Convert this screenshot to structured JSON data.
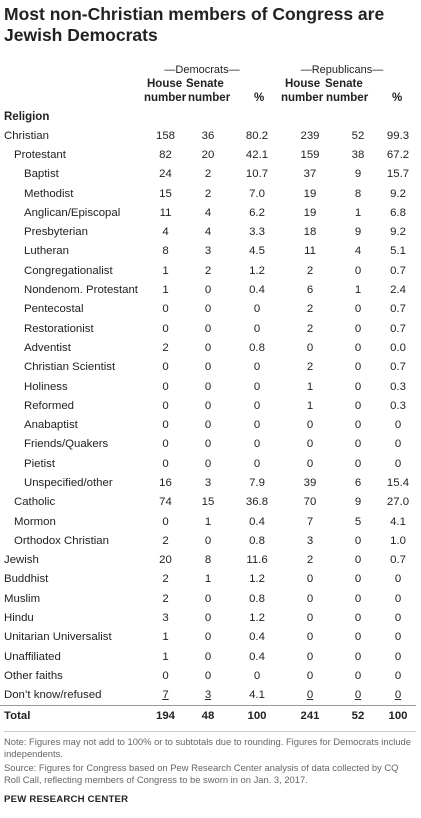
{
  "title": "Most non-Christian members of Congress are Jewish Democrats",
  "groups": {
    "democrats": "—Democrats—",
    "republicans": "—Republicans—"
  },
  "columns": {
    "house_top": "House",
    "senate_top": "Senate",
    "house_bottom": "number",
    "senate_bottom": "number",
    "pct": "%"
  },
  "religion_header": "Religion",
  "rows": [
    {
      "label": "Christian",
      "indent": 0,
      "v": [
        "158",
        "36",
        "80.2",
        "239",
        "52",
        "99.3"
      ]
    },
    {
      "label": "Protestant",
      "indent": 1,
      "v": [
        "82",
        "20",
        "42.1",
        "159",
        "38",
        "67.2"
      ]
    },
    {
      "label": "Baptist",
      "indent": 2,
      "v": [
        "24",
        "2",
        "10.7",
        "37",
        "9",
        "15.7"
      ]
    },
    {
      "label": "Methodist",
      "indent": 2,
      "v": [
        "15",
        "2",
        "7.0",
        "19",
        "8",
        "9.2"
      ]
    },
    {
      "label": "Anglican/Episcopal",
      "indent": 2,
      "v": [
        "11",
        "4",
        "6.2",
        "19",
        "1",
        "6.8"
      ]
    },
    {
      "label": "Presbyterian",
      "indent": 2,
      "v": [
        "4",
        "4",
        "3.3",
        "18",
        "9",
        "9.2"
      ]
    },
    {
      "label": "Lutheran",
      "indent": 2,
      "v": [
        "8",
        "3",
        "4.5",
        "11",
        "4",
        "5.1"
      ]
    },
    {
      "label": "Congregationalist",
      "indent": 2,
      "v": [
        "1",
        "2",
        "1.2",
        "2",
        "0",
        "0.7"
      ]
    },
    {
      "label": "Nondenom. Protestant",
      "indent": 2,
      "v": [
        "1",
        "0",
        "0.4",
        "6",
        "1",
        "2.4"
      ]
    },
    {
      "label": "Pentecostal",
      "indent": 2,
      "v": [
        "0",
        "0",
        "0",
        "2",
        "0",
        "0.7"
      ]
    },
    {
      "label": "Restorationist",
      "indent": 2,
      "v": [
        "0",
        "0",
        "0",
        "2",
        "0",
        "0.7"
      ]
    },
    {
      "label": "Adventist",
      "indent": 2,
      "v": [
        "2",
        "0",
        "0.8",
        "0",
        "0",
        "0.0"
      ]
    },
    {
      "label": "Christian Scientist",
      "indent": 2,
      "v": [
        "0",
        "0",
        "0",
        "2",
        "0",
        "0.7"
      ]
    },
    {
      "label": "Holiness",
      "indent": 2,
      "v": [
        "0",
        "0",
        "0",
        "1",
        "0",
        "0.3"
      ]
    },
    {
      "label": "Reformed",
      "indent": 2,
      "v": [
        "0",
        "0",
        "0",
        "1",
        "0",
        "0.3"
      ]
    },
    {
      "label": "Anabaptist",
      "indent": 2,
      "v": [
        "0",
        "0",
        "0",
        "0",
        "0",
        "0"
      ]
    },
    {
      "label": "Friends/Quakers",
      "indent": 2,
      "v": [
        "0",
        "0",
        "0",
        "0",
        "0",
        "0"
      ]
    },
    {
      "label": "Pietist",
      "indent": 2,
      "v": [
        "0",
        "0",
        "0",
        "0",
        "0",
        "0"
      ]
    },
    {
      "label": "Unspecified/other",
      "indent": 2,
      "v": [
        "16",
        "3",
        "7.9",
        "39",
        "6",
        "15.4"
      ]
    },
    {
      "label": "Catholic",
      "indent": 1,
      "v": [
        "74",
        "15",
        "36.8",
        "70",
        "9",
        "27.0"
      ]
    },
    {
      "label": "Mormon",
      "indent": 1,
      "v": [
        "0",
        "1",
        "0.4",
        "7",
        "5",
        "4.1"
      ]
    },
    {
      "label": "Orthodox Christian",
      "indent": 1,
      "v": [
        "2",
        "0",
        "0.8",
        "3",
        "0",
        "1.0"
      ]
    },
    {
      "label": "Jewish",
      "indent": 0,
      "v": [
        "20",
        "8",
        "11.6",
        "2",
        "0",
        "0.7"
      ]
    },
    {
      "label": "Buddhist",
      "indent": 0,
      "v": [
        "2",
        "1",
        "1.2",
        "0",
        "0",
        "0"
      ]
    },
    {
      "label": "Muslim",
      "indent": 0,
      "v": [
        "2",
        "0",
        "0.8",
        "0",
        "0",
        "0"
      ]
    },
    {
      "label": "Hindu",
      "indent": 0,
      "v": [
        "3",
        "0",
        "1.2",
        "0",
        "0",
        "0"
      ]
    },
    {
      "label": "Unitarian Universalist",
      "indent": 0,
      "v": [
        "1",
        "0",
        "0.4",
        "0",
        "0",
        "0"
      ]
    },
    {
      "label": "Unaffiliated",
      "indent": 0,
      "v": [
        "1",
        "0",
        "0.4",
        "0",
        "0",
        "0"
      ]
    },
    {
      "label": "Other faiths",
      "indent": 0,
      "v": [
        "0",
        "0",
        "0",
        "0",
        "0",
        "0"
      ]
    },
    {
      "label": "Don’t know/refused",
      "indent": 0,
      "v": [
        "7",
        "3",
        "4.1",
        "0",
        "0",
        "0"
      ],
      "underline": [
        true,
        true,
        false,
        true,
        true,
        true
      ]
    }
  ],
  "total": {
    "label": "Total",
    "v": [
      "194",
      "48",
      "100",
      "241",
      "52",
      "100"
    ]
  },
  "notes": {
    "note": "Note: Figures may not add to 100% or to subtotals due to rounding. Figures for Democrats include independents.",
    "source": "Source: Figures for Congress based on Pew Research Center analysis of data collected by CQ Roll Call, reflecting members of Congress to be sworn in on Jan. 3, 2017."
  },
  "brand": "PEW RESEARCH CENTER"
}
